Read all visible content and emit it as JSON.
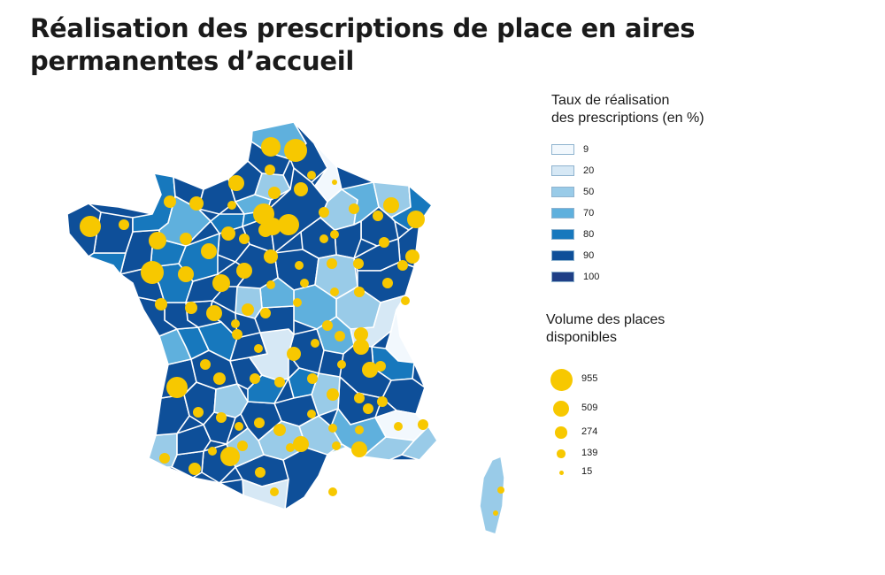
{
  "title": "Réalisation des prescriptions de place en aires permanentes d’accueil",
  "legend": {
    "rate_title_line1": "Taux de réalisation",
    "rate_title_line2": "des prescriptions (en %)",
    "rate_classes": [
      {
        "label": "9",
        "color": "#f2f8fd"
      },
      {
        "label": "20",
        "color": "#d6e8f5"
      },
      {
        "label": "50",
        "color": "#99cbe8"
      },
      {
        "label": "70",
        "color": "#5fb0dd"
      },
      {
        "label": "80",
        "color": "#1778bd"
      },
      {
        "label": "90",
        "color": "#0e4f99"
      },
      {
        "label": "100",
        "color": "#1f3f86"
      }
    ],
    "volume_title_line1": "Volume des places",
    "volume_title_line2": "disponibles",
    "volume_classes": [
      {
        "label": "955",
        "value": 955
      },
      {
        "label": "509",
        "value": 509
      },
      {
        "label": "274",
        "value": 274
      },
      {
        "label": "139",
        "value": 139
      },
      {
        "label": "15",
        "value": 15
      }
    ],
    "bubble_color": "#f7c800"
  }
}
